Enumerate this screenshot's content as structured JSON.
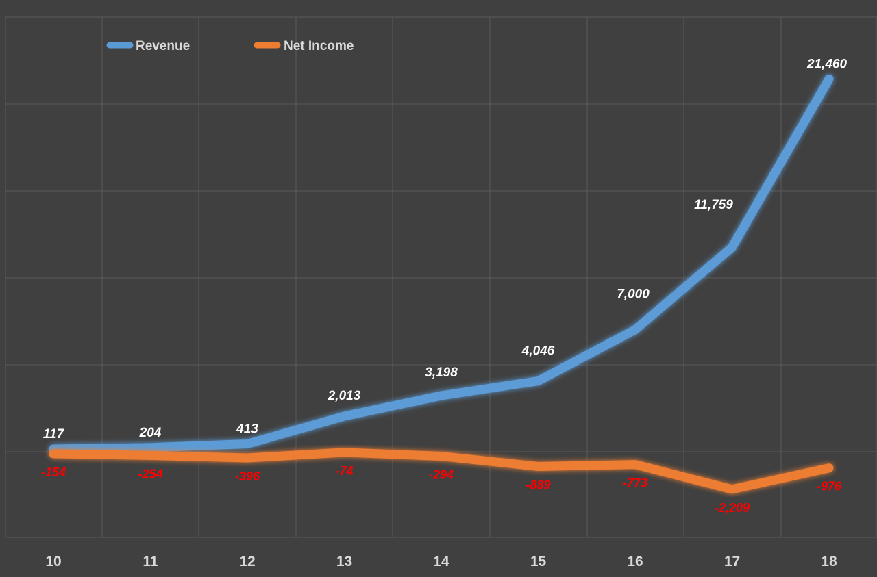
{
  "chart_data": {
    "type": "line",
    "title": "",
    "xlabel": "",
    "ylabel": "",
    "categories": [
      "10",
      "11",
      "12",
      "13",
      "14",
      "15",
      "16",
      "17",
      "18"
    ],
    "ylim": [
      -6000,
      27000
    ],
    "grid": true,
    "legend_position": "top-left",
    "series": [
      {
        "name": "Revenue",
        "color": "#5b9bd5",
        "values": [
          117,
          204,
          413,
          2013,
          3198,
          4046,
          7000,
          11759,
          21460
        ],
        "labels": [
          "117",
          "204",
          "413",
          "2,013",
          "3,198",
          "4,046",
          "7,000",
          "11,759",
          "21,460"
        ]
      },
      {
        "name": "Net Income",
        "color": "#ed7d31",
        "values": [
          -154,
          -254,
          -396,
          -74,
          -294,
          -889,
          -773,
          -2209,
          -976
        ],
        "labels": [
          "-154",
          "-254",
          "-396",
          "-74",
          "-294",
          "-889",
          "-773",
          "-2,209",
          "-976"
        ]
      }
    ],
    "colors": {
      "background": "#404040",
      "grid": "#5a5a5a",
      "tick_text": "#d9d9d9",
      "positive_label": "#ffffff",
      "negative_label": "#ff0000"
    }
  }
}
